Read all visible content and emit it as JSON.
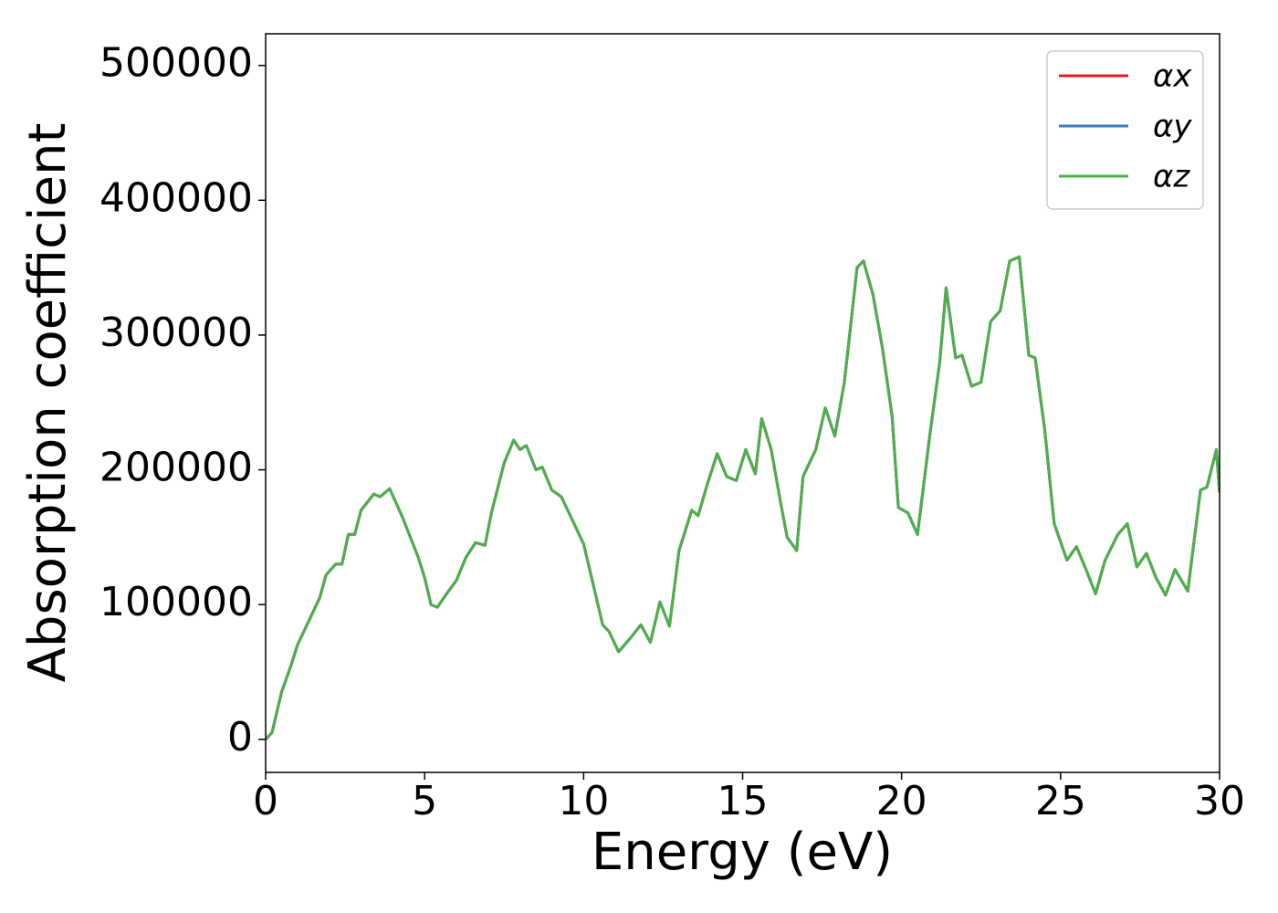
{
  "chart_data": {
    "type": "line",
    "xlabel": "Energy (eV)",
    "ylabel": "Absorption coefficient",
    "x": [
      0,
      0.2,
      0.5,
      0.8,
      1.0,
      1.4,
      1.7,
      1.9,
      2.2,
      2.4,
      2.6,
      2.8,
      3.0,
      3.4,
      3.6,
      3.9,
      4.3,
      4.8,
      5.0,
      5.2,
      5.4,
      5.6,
      6.0,
      6.3,
      6.6,
      6.9,
      7.1,
      7.5,
      7.8,
      8.0,
      8.2,
      8.5,
      8.7,
      9.0,
      9.3,
      9.6,
      10.0,
      10.3,
      10.6,
      10.8,
      11.1,
      11.5,
      11.8,
      12.1,
      12.4,
      12.7,
      13.0,
      13.4,
      13.6,
      13.9,
      14.2,
      14.5,
      14.8,
      15.1,
      15.4,
      15.6,
      15.9,
      16.2,
      16.4,
      16.7,
      16.9,
      17.3,
      17.6,
      17.9,
      18.2,
      18.6,
      18.8,
      19.1,
      19.4,
      19.7,
      19.9,
      20.2,
      20.5,
      20.9,
      21.2,
      21.4,
      21.7,
      21.9,
      22.2,
      22.5,
      22.8,
      23.1,
      23.4,
      23.7,
      24.0,
      24.2,
      24.5,
      24.8,
      25.2,
      25.5,
      25.8,
      26.1,
      26.4,
      26.8,
      27.1,
      27.4,
      27.7,
      28.0,
      28.3,
      28.6,
      29.0,
      29.4,
      29.6,
      29.9,
      30.0
    ],
    "series": [
      {
        "name": "αx",
        "color": "#e41a1c",
        "values": [
          0,
          5000,
          35000,
          55000,
          70000,
          90000,
          105000,
          122000,
          130000,
          130000,
          152000,
          152000,
          170000,
          182000,
          180000,
          186000,
          165000,
          135000,
          120000,
          100000,
          98000,
          105000,
          118000,
          135000,
          146000,
          144000,
          168000,
          205000,
          222000,
          215000,
          218000,
          200000,
          202000,
          185000,
          180000,
          165000,
          145000,
          115000,
          85000,
          80000,
          65000,
          76000,
          85000,
          72000,
          102000,
          84000,
          140000,
          170000,
          166000,
          190000,
          212000,
          195000,
          192000,
          215000,
          197000,
          238000,
          215000,
          175000,
          150000,
          140000,
          195000,
          215000,
          246000,
          225000,
          265000,
          350000,
          355000,
          330000,
          290000,
          240000,
          172000,
          168000,
          152000,
          228000,
          280000,
          335000,
          283000,
          285000,
          262000,
          265000,
          310000,
          318000,
          355000,
          358000,
          285000,
          283000,
          230000,
          160000,
          133000,
          143000,
          126000,
          108000,
          133000,
          152000,
          160000,
          128000,
          138000,
          120000,
          107000,
          126000,
          110000,
          185000,
          187000,
          215000,
          183000
        ]
      },
      {
        "name": "αy",
        "color": "#377eb8",
        "values": [
          0,
          5000,
          35000,
          55000,
          70000,
          90000,
          105000,
          122000,
          130000,
          130000,
          152000,
          152000,
          170000,
          182000,
          180000,
          186000,
          165000,
          135000,
          120000,
          100000,
          98000,
          105000,
          118000,
          135000,
          146000,
          144000,
          168000,
          205000,
          222000,
          215000,
          218000,
          200000,
          202000,
          185000,
          180000,
          165000,
          145000,
          115000,
          85000,
          80000,
          65000,
          76000,
          85000,
          72000,
          102000,
          84000,
          140000,
          170000,
          166000,
          190000,
          212000,
          195000,
          192000,
          215000,
          197000,
          238000,
          215000,
          175000,
          150000,
          140000,
          195000,
          215000,
          246000,
          225000,
          265000,
          350000,
          355000,
          330000,
          290000,
          240000,
          172000,
          168000,
          152000,
          228000,
          280000,
          335000,
          283000,
          285000,
          262000,
          265000,
          310000,
          318000,
          355000,
          358000,
          285000,
          283000,
          230000,
          160000,
          133000,
          143000,
          126000,
          108000,
          133000,
          152000,
          160000,
          128000,
          138000,
          120000,
          107000,
          126000,
          110000,
          185000,
          187000,
          215000,
          183000
        ]
      },
      {
        "name": "αz",
        "color": "#4daf4a",
        "values": [
          0,
          5000,
          35000,
          55000,
          70000,
          90000,
          105000,
          122000,
          130000,
          130000,
          152000,
          152000,
          170000,
          182000,
          180000,
          186000,
          165000,
          135000,
          120000,
          100000,
          98000,
          105000,
          118000,
          135000,
          146000,
          144000,
          168000,
          205000,
          222000,
          215000,
          218000,
          200000,
          202000,
          185000,
          180000,
          165000,
          145000,
          115000,
          85000,
          80000,
          65000,
          76000,
          85000,
          72000,
          102000,
          84000,
          140000,
          170000,
          166000,
          190000,
          212000,
          195000,
          192000,
          215000,
          197000,
          238000,
          215000,
          175000,
          150000,
          140000,
          195000,
          215000,
          246000,
          225000,
          265000,
          350000,
          355000,
          330000,
          290000,
          240000,
          172000,
          168000,
          152000,
          228000,
          280000,
          335000,
          283000,
          285000,
          262000,
          265000,
          310000,
          318000,
          355000,
          358000,
          285000,
          283000,
          230000,
          160000,
          133000,
          143000,
          126000,
          108000,
          133000,
          152000,
          160000,
          128000,
          138000,
          120000,
          107000,
          126000,
          110000,
          185000,
          187000,
          215000,
          183000
        ]
      }
    ],
    "xlim": [
      0,
      30
    ],
    "xticks": [
      0,
      5,
      10,
      15,
      20,
      25,
      30
    ],
    "ylim": [
      -24500,
      523500
    ],
    "yticks": [
      0,
      100000,
      200000,
      300000,
      400000,
      500000
    ],
    "legend": "upper right",
    "grid": false
  }
}
